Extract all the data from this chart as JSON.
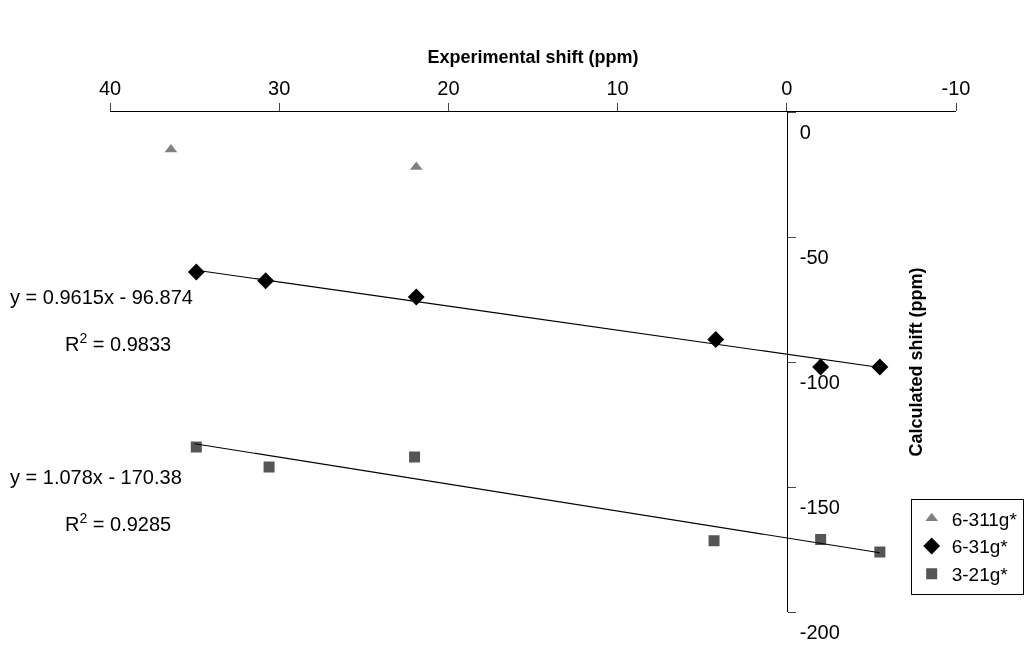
{
  "chart_data": {
    "type": "scatter",
    "xlabel": "Experimental shift (ppm)",
    "ylabel": "Calculated shift (ppm)",
    "xlim": [
      40,
      -10
    ],
    "xticks": [
      40,
      30,
      20,
      10,
      0,
      -10
    ],
    "ylim": [
      -200,
      0
    ],
    "yticks": [
      0,
      -50,
      -100,
      -150,
      -200
    ],
    "grid": false,
    "legend": "bottom right",
    "series": [
      {
        "name": "6-311g*",
        "color": "#808080",
        "marker": "triangle",
        "x": [
          36.4,
          21.9
        ],
        "values": [
          -15,
          -22
        ]
      },
      {
        "name": "6-31g*",
        "color": "#000000",
        "marker": "diamond",
        "x": [
          34.9,
          30.8,
          21.9,
          4.2,
          -2,
          -5.5
        ],
        "values": [
          -64,
          -67.5,
          -74,
          -91,
          -102,
          -102
        ]
      },
      {
        "name": "3-21g*",
        "color": "#555555",
        "marker": "square",
        "x": [
          34.9,
          30.6,
          22,
          4.3,
          -2,
          -5.5
        ],
        "values": [
          -134,
          -142,
          -138,
          -171.5,
          -171,
          -176
        ]
      },
      {
        "type": "line",
        "color": "#000000",
        "marker": "none",
        "line_style": "solid",
        "x": [
          35,
          -5.5
        ],
        "values": [
          -63.2,
          -102.2
        ]
      },
      {
        "type": "line",
        "color": "#000000",
        "marker": "none",
        "line_style": "solid",
        "x": [
          35,
          -5.5
        ],
        "values": [
          -132.7,
          -176.3
        ]
      }
    ],
    "annotations": [
      "y = 0.9615x - 96.874",
      "R$^{2}$ = 0.9833",
      "y = 1.078x - 170.38",
      "R$^{2}$ = 0.9285"
    ]
  }
}
